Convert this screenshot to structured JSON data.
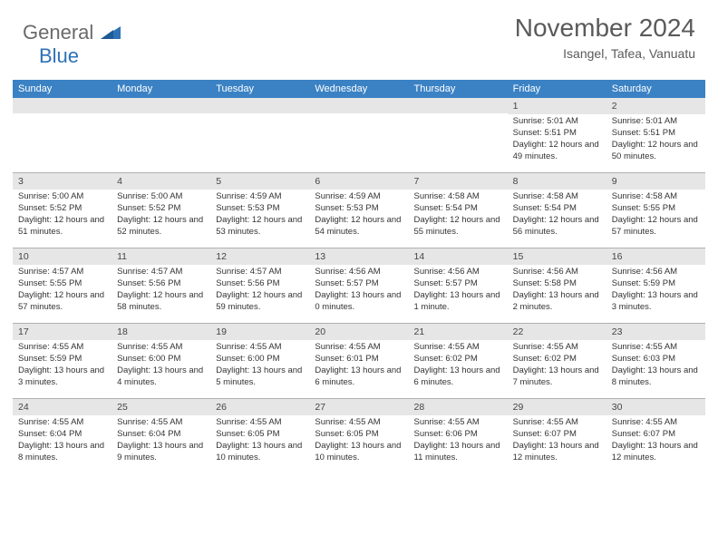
{
  "logo": {
    "text1": "General",
    "text2": "Blue",
    "icon_color": "#2d72b5"
  },
  "title": "November 2024",
  "location": "Isangel, Tafea, Vanuatu",
  "colors": {
    "header_bg": "#3b82c4",
    "header_text": "#ffffff",
    "daynum_bg": "#e6e6e6",
    "border": "#b0b0b0",
    "text": "#333333"
  },
  "day_names": [
    "Sunday",
    "Monday",
    "Tuesday",
    "Wednesday",
    "Thursday",
    "Friday",
    "Saturday"
  ],
  "weeks": [
    [
      {
        "num": "",
        "sunrise": "",
        "sunset": "",
        "daylight": ""
      },
      {
        "num": "",
        "sunrise": "",
        "sunset": "",
        "daylight": ""
      },
      {
        "num": "",
        "sunrise": "",
        "sunset": "",
        "daylight": ""
      },
      {
        "num": "",
        "sunrise": "",
        "sunset": "",
        "daylight": ""
      },
      {
        "num": "",
        "sunrise": "",
        "sunset": "",
        "daylight": ""
      },
      {
        "num": "1",
        "sunrise": "Sunrise: 5:01 AM",
        "sunset": "Sunset: 5:51 PM",
        "daylight": "Daylight: 12 hours and 49 minutes."
      },
      {
        "num": "2",
        "sunrise": "Sunrise: 5:01 AM",
        "sunset": "Sunset: 5:51 PM",
        "daylight": "Daylight: 12 hours and 50 minutes."
      }
    ],
    [
      {
        "num": "3",
        "sunrise": "Sunrise: 5:00 AM",
        "sunset": "Sunset: 5:52 PM",
        "daylight": "Daylight: 12 hours and 51 minutes."
      },
      {
        "num": "4",
        "sunrise": "Sunrise: 5:00 AM",
        "sunset": "Sunset: 5:52 PM",
        "daylight": "Daylight: 12 hours and 52 minutes."
      },
      {
        "num": "5",
        "sunrise": "Sunrise: 4:59 AM",
        "sunset": "Sunset: 5:53 PM",
        "daylight": "Daylight: 12 hours and 53 minutes."
      },
      {
        "num": "6",
        "sunrise": "Sunrise: 4:59 AM",
        "sunset": "Sunset: 5:53 PM",
        "daylight": "Daylight: 12 hours and 54 minutes."
      },
      {
        "num": "7",
        "sunrise": "Sunrise: 4:58 AM",
        "sunset": "Sunset: 5:54 PM",
        "daylight": "Daylight: 12 hours and 55 minutes."
      },
      {
        "num": "8",
        "sunrise": "Sunrise: 4:58 AM",
        "sunset": "Sunset: 5:54 PM",
        "daylight": "Daylight: 12 hours and 56 minutes."
      },
      {
        "num": "9",
        "sunrise": "Sunrise: 4:58 AM",
        "sunset": "Sunset: 5:55 PM",
        "daylight": "Daylight: 12 hours and 57 minutes."
      }
    ],
    [
      {
        "num": "10",
        "sunrise": "Sunrise: 4:57 AM",
        "sunset": "Sunset: 5:55 PM",
        "daylight": "Daylight: 12 hours and 57 minutes."
      },
      {
        "num": "11",
        "sunrise": "Sunrise: 4:57 AM",
        "sunset": "Sunset: 5:56 PM",
        "daylight": "Daylight: 12 hours and 58 minutes."
      },
      {
        "num": "12",
        "sunrise": "Sunrise: 4:57 AM",
        "sunset": "Sunset: 5:56 PM",
        "daylight": "Daylight: 12 hours and 59 minutes."
      },
      {
        "num": "13",
        "sunrise": "Sunrise: 4:56 AM",
        "sunset": "Sunset: 5:57 PM",
        "daylight": "Daylight: 13 hours and 0 minutes."
      },
      {
        "num": "14",
        "sunrise": "Sunrise: 4:56 AM",
        "sunset": "Sunset: 5:57 PM",
        "daylight": "Daylight: 13 hours and 1 minute."
      },
      {
        "num": "15",
        "sunrise": "Sunrise: 4:56 AM",
        "sunset": "Sunset: 5:58 PM",
        "daylight": "Daylight: 13 hours and 2 minutes."
      },
      {
        "num": "16",
        "sunrise": "Sunrise: 4:56 AM",
        "sunset": "Sunset: 5:59 PM",
        "daylight": "Daylight: 13 hours and 3 minutes."
      }
    ],
    [
      {
        "num": "17",
        "sunrise": "Sunrise: 4:55 AM",
        "sunset": "Sunset: 5:59 PM",
        "daylight": "Daylight: 13 hours and 3 minutes."
      },
      {
        "num": "18",
        "sunrise": "Sunrise: 4:55 AM",
        "sunset": "Sunset: 6:00 PM",
        "daylight": "Daylight: 13 hours and 4 minutes."
      },
      {
        "num": "19",
        "sunrise": "Sunrise: 4:55 AM",
        "sunset": "Sunset: 6:00 PM",
        "daylight": "Daylight: 13 hours and 5 minutes."
      },
      {
        "num": "20",
        "sunrise": "Sunrise: 4:55 AM",
        "sunset": "Sunset: 6:01 PM",
        "daylight": "Daylight: 13 hours and 6 minutes."
      },
      {
        "num": "21",
        "sunrise": "Sunrise: 4:55 AM",
        "sunset": "Sunset: 6:02 PM",
        "daylight": "Daylight: 13 hours and 6 minutes."
      },
      {
        "num": "22",
        "sunrise": "Sunrise: 4:55 AM",
        "sunset": "Sunset: 6:02 PM",
        "daylight": "Daylight: 13 hours and 7 minutes."
      },
      {
        "num": "23",
        "sunrise": "Sunrise: 4:55 AM",
        "sunset": "Sunset: 6:03 PM",
        "daylight": "Daylight: 13 hours and 8 minutes."
      }
    ],
    [
      {
        "num": "24",
        "sunrise": "Sunrise: 4:55 AM",
        "sunset": "Sunset: 6:04 PM",
        "daylight": "Daylight: 13 hours and 8 minutes."
      },
      {
        "num": "25",
        "sunrise": "Sunrise: 4:55 AM",
        "sunset": "Sunset: 6:04 PM",
        "daylight": "Daylight: 13 hours and 9 minutes."
      },
      {
        "num": "26",
        "sunrise": "Sunrise: 4:55 AM",
        "sunset": "Sunset: 6:05 PM",
        "daylight": "Daylight: 13 hours and 10 minutes."
      },
      {
        "num": "27",
        "sunrise": "Sunrise: 4:55 AM",
        "sunset": "Sunset: 6:05 PM",
        "daylight": "Daylight: 13 hours and 10 minutes."
      },
      {
        "num": "28",
        "sunrise": "Sunrise: 4:55 AM",
        "sunset": "Sunset: 6:06 PM",
        "daylight": "Daylight: 13 hours and 11 minutes."
      },
      {
        "num": "29",
        "sunrise": "Sunrise: 4:55 AM",
        "sunset": "Sunset: 6:07 PM",
        "daylight": "Daylight: 13 hours and 12 minutes."
      },
      {
        "num": "30",
        "sunrise": "Sunrise: 4:55 AM",
        "sunset": "Sunset: 6:07 PM",
        "daylight": "Daylight: 13 hours and 12 minutes."
      }
    ]
  ]
}
